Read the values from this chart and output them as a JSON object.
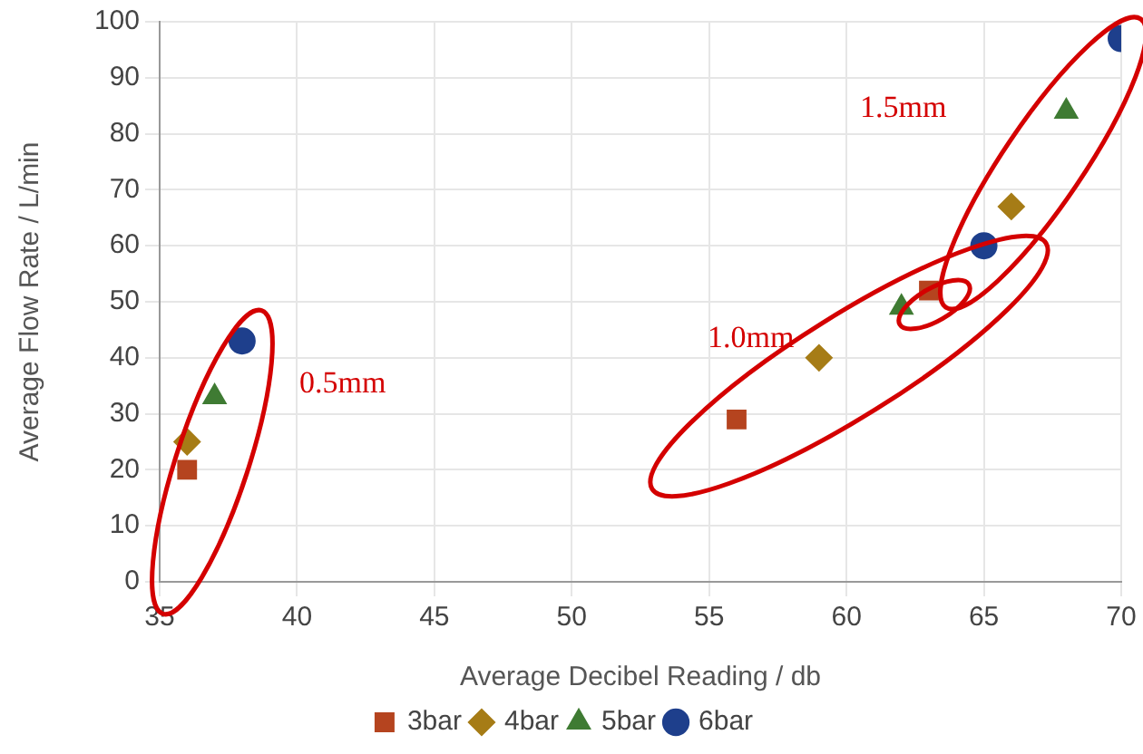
{
  "chart_data": {
    "type": "scatter",
    "xlabel": "Average Decibel Reading / db",
    "ylabel": "Average Flow Rate / L/min",
    "xlim": [
      35,
      70
    ],
    "xticks": [
      35,
      40,
      45,
      50,
      55,
      60,
      65,
      70
    ],
    "ylim": [
      0,
      100
    ],
    "yticks": [
      0,
      10,
      20,
      30,
      40,
      50,
      60,
      70,
      80,
      90,
      100
    ],
    "grid": true,
    "legend": "bottom",
    "series": [
      {
        "name": "3bar",
        "color": "#b5441f",
        "marker": "square",
        "x": [
          36,
          56,
          63
        ],
        "values": [
          20,
          29,
          52
        ]
      },
      {
        "name": "4bar",
        "color": "#a67c16",
        "marker": "diamond",
        "x": [
          36,
          59,
          66
        ],
        "values": [
          25,
          40,
          67
        ]
      },
      {
        "name": "5bar",
        "color": "#3f7b33",
        "marker": "triangle",
        "x": [
          37,
          62,
          68
        ],
        "values": [
          33,
          49,
          84
        ]
      },
      {
        "name": "6bar",
        "color": "#1e3f8c",
        "marker": "circle",
        "x": [
          38,
          65,
          70
        ],
        "values": [
          43,
          60,
          97
        ]
      }
    ],
    "annotations": [
      "0.5mm",
      "1.0mm",
      "1.5mm"
    ]
  }
}
